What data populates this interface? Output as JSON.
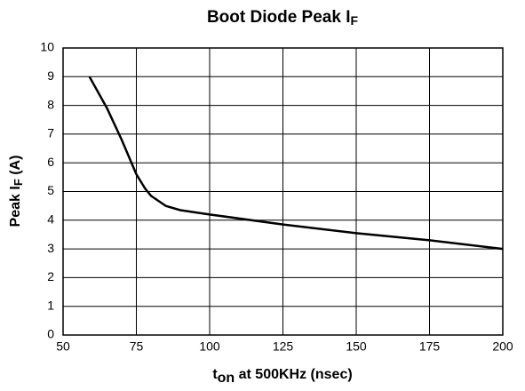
{
  "chart_data": {
    "type": "line",
    "title": [
      "Boot Diode Peak I",
      "F"
    ],
    "xlabel": [
      "t",
      "on",
      " at 500KHz  (nsec)"
    ],
    "ylabel": [
      "Peak I",
      "F",
      "  (A)"
    ],
    "x": [
      59,
      65,
      70,
      75,
      78,
      80,
      85,
      90,
      100,
      125,
      150,
      175,
      200
    ],
    "series": [
      {
        "name": "Peak IF",
        "color": "#000000",
        "values": [
          9.0,
          7.9,
          6.8,
          5.6,
          5.1,
          4.85,
          4.5,
          4.35,
          4.2,
          3.85,
          3.55,
          3.3,
          3.0
        ]
      }
    ],
    "xlim": [
      50,
      200
    ],
    "xticks": [
      50,
      75,
      100,
      125,
      150,
      175,
      200
    ],
    "ylim": [
      0,
      10
    ],
    "yticks": [
      0,
      1,
      2,
      3,
      4,
      5,
      6,
      7,
      8,
      9,
      10
    ],
    "grid": true
  }
}
